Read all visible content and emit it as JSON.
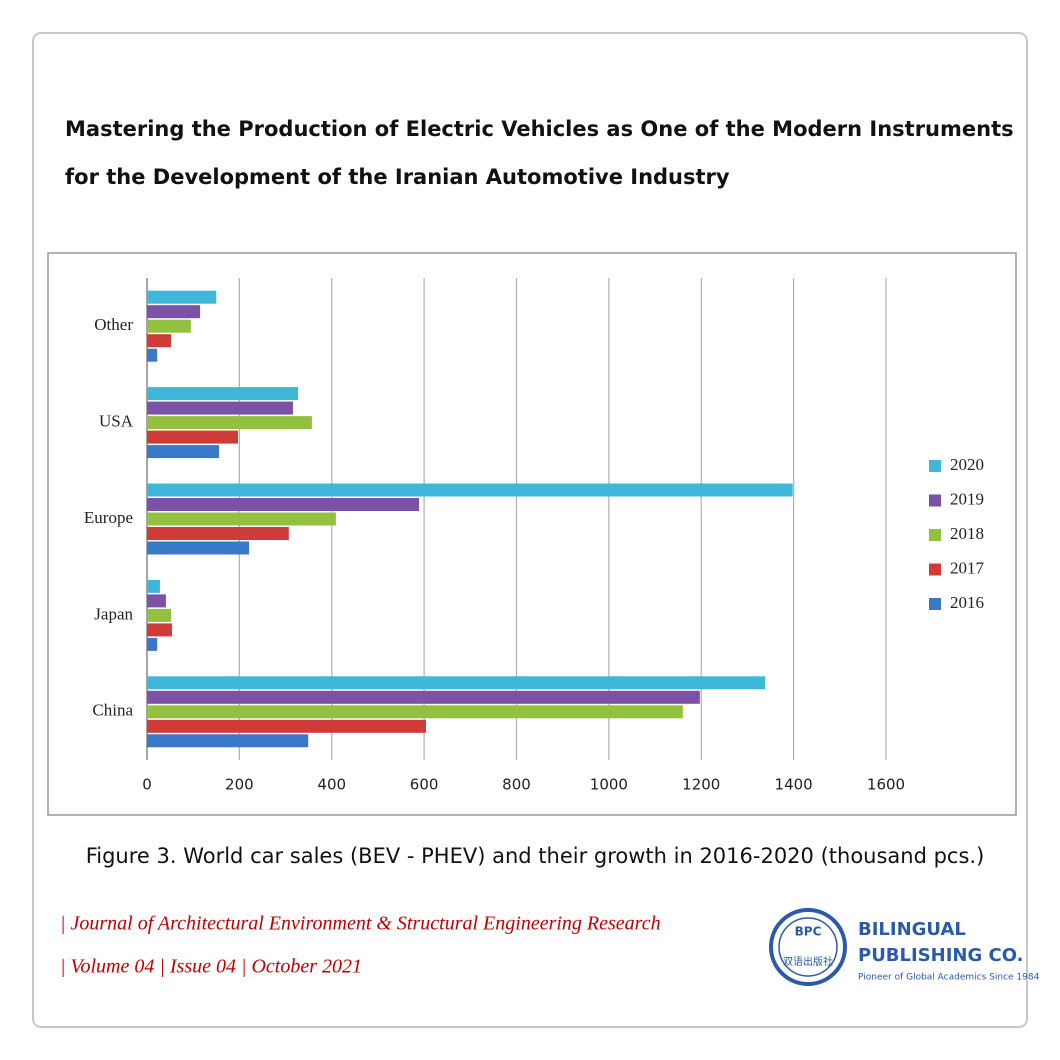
{
  "header": {
    "title_line_1": "Mastering the Production of Electric Vehicles as One of the Modern Instruments",
    "title_line_2": "for the Development of the Iranian Automotive Industry"
  },
  "chart_data": {
    "type": "bar",
    "orientation": "horizontal",
    "categories": [
      "China",
      "Japan",
      "Europe",
      "USA",
      "Other"
    ],
    "series": [
      {
        "name": "2016",
        "color": "#3a78c9",
        "values": [
          349,
          22,
          221,
          156,
          22
        ]
      },
      {
        "name": "2017",
        "color": "#d03b3a",
        "values": [
          604,
          54,
          307,
          197,
          52
        ]
      },
      {
        "name": "2018",
        "color": "#92c13f",
        "values": [
          1160,
          52,
          409,
          357,
          95
        ]
      },
      {
        "name": "2019",
        "color": "#7b52a6",
        "values": [
          1197,
          41,
          589,
          316,
          115
        ]
      },
      {
        "name": "2020",
        "color": "#3fb7d8",
        "values": [
          1338,
          28,
          1398,
          327,
          150
        ]
      }
    ],
    "xlim": [
      0,
      1600
    ],
    "xticks": [
      0,
      200,
      400,
      600,
      800,
      1000,
      1200,
      1400,
      1600
    ],
    "grid": true,
    "legend": "right"
  },
  "caption": "Figure 3. World car sales (BEV - PHEV) and their growth in 2016-2020 (thousand pcs.)",
  "journal": {
    "line_1": "| Journal of Architectural Environment & Structural Engineering Research",
    "line_2": "| Volume 04 | Issue 04 | October 2021"
  },
  "logo": {
    "badge": "BPC",
    "chinese": "双语出版社",
    "name_1": "BILINGUAL",
    "name_2": "PUBLISHING CO.",
    "tagline": "Pioneer of Global Academics Since 1984"
  }
}
